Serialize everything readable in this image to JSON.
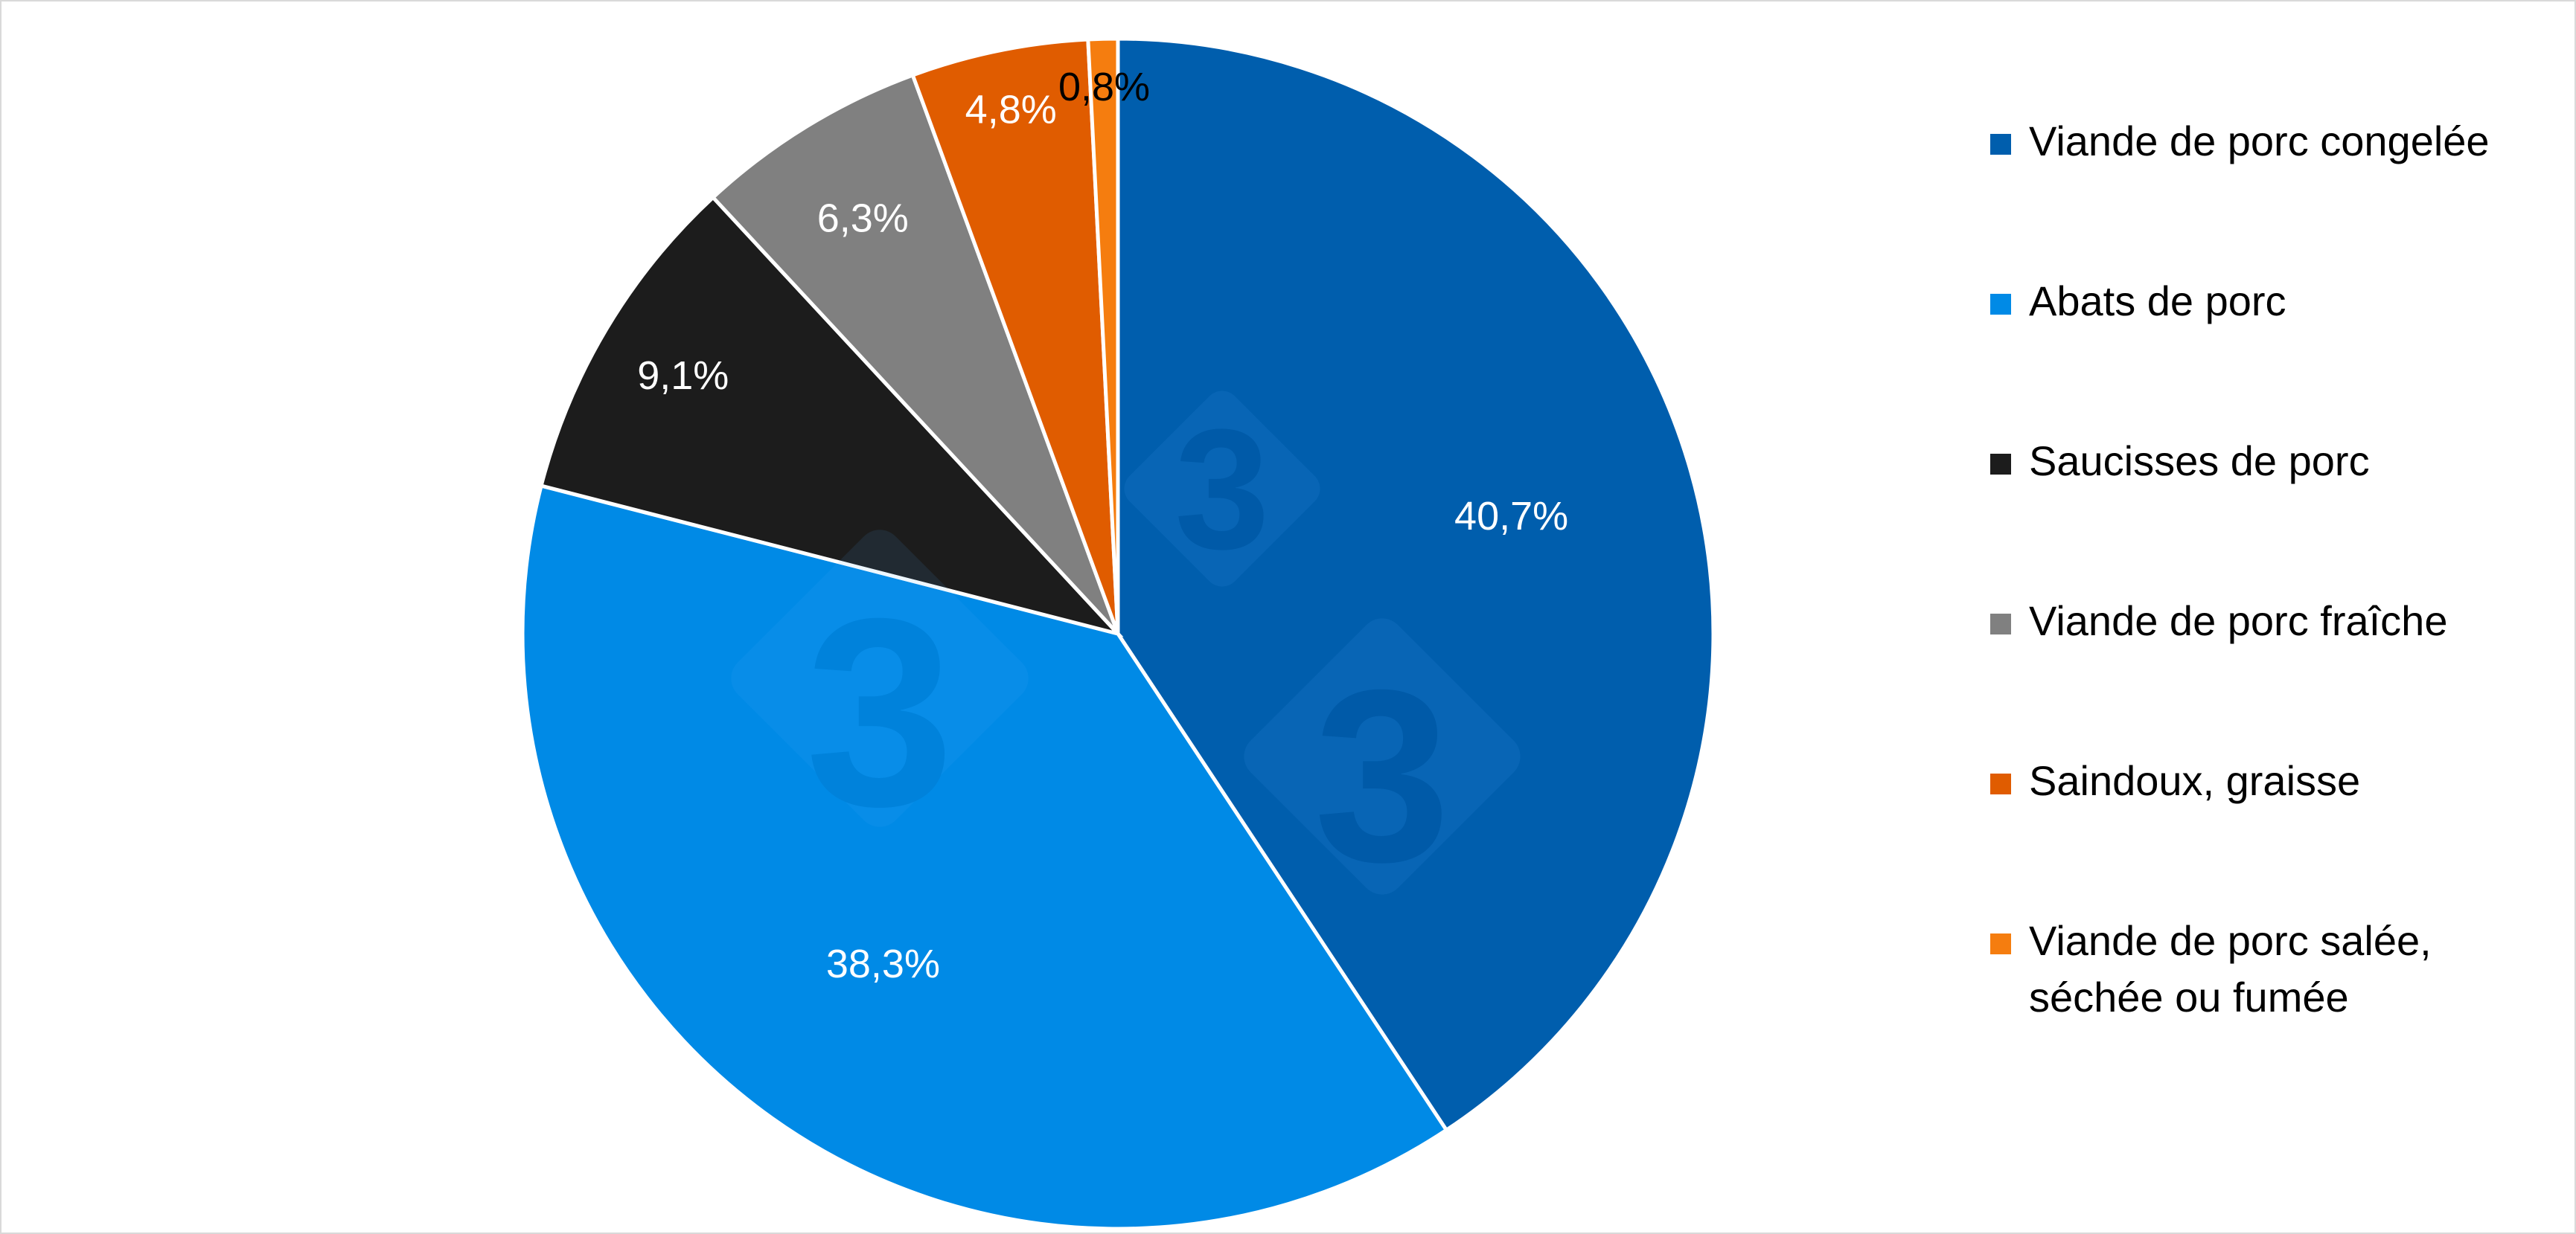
{
  "chart_data": {
    "type": "pie",
    "title": "",
    "legend_position": "right",
    "slices": [
      {
        "label": "Viande de porc congelée",
        "value": 40.7,
        "display": "40,7%",
        "color": "#005ead",
        "label_color": "#ffffff"
      },
      {
        "label": "Abats de porc",
        "value": 38.3,
        "display": "38,3%",
        "color": "#008ae6",
        "label_color": "#ffffff"
      },
      {
        "label": "Saucisses de porc",
        "value": 9.1,
        "display": "9,1%",
        "color": "#1c1c1c",
        "label_color": "#ffffff"
      },
      {
        "label": "Viande de porc fraîche",
        "value": 6.3,
        "display": "6,3%",
        "color": "#808080",
        "label_color": "#ffffff"
      },
      {
        "label": "Saindoux, graisse",
        "value": 4.8,
        "display": "4,8%",
        "color": "#e05c00",
        "label_color": "#ffffff"
      },
      {
        "label": "Viande de porc salée, séchée ou fumée",
        "value": 0.8,
        "display": "0,8%",
        "color": "#f57d0f",
        "label_color": "#000000"
      }
    ]
  }
}
